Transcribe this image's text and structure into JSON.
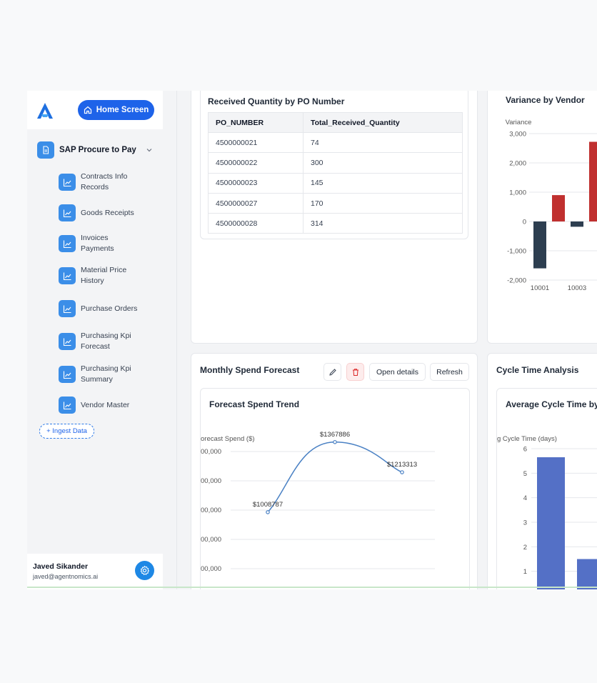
{
  "sidebar": {
    "home_button": "Home Screen",
    "group_label": "SAP Procure to Pay",
    "items": [
      {
        "label": "Contracts Info Records"
      },
      {
        "label": "Goods Receipts"
      },
      {
        "label": "Invoices Payments"
      },
      {
        "label": "Material Price History"
      },
      {
        "label": "Purchase Orders"
      },
      {
        "label": "Purchasing Kpi Forecast"
      },
      {
        "label": "Purchasing Kpi Summary"
      },
      {
        "label": "Vendor Master"
      }
    ],
    "ingest_button": "+ Ingest Data"
  },
  "user": {
    "name": "Javed Sikander",
    "email": "javed@agentnomics.ai"
  },
  "received_qty": {
    "title": "Received Quantity by PO Number",
    "columns": [
      "PO_NUMBER",
      "Total_Received_Quantity"
    ],
    "rows": [
      [
        "4500000021",
        "74"
      ],
      [
        "4500000022",
        "300"
      ],
      [
        "4500000023",
        "145"
      ],
      [
        "4500000027",
        "170"
      ],
      [
        "4500000028",
        "314"
      ]
    ]
  },
  "variance": {
    "title": "Variance by Vendor"
  },
  "monthly_spend": {
    "title": "Monthly Spend Forecast",
    "open_details": "Open details",
    "refresh": "Refresh"
  },
  "cycle_time": {
    "title": "Cycle Time Analysis"
  },
  "colors": {
    "accent": "#1e63e9",
    "icon_bg": "#3b8ee8",
    "neg_bar": "#2d3e50",
    "pos_bar": "#c0302f",
    "cycle_bar": "#5470c6",
    "line": "#4a81c4"
  },
  "chart_data": [
    {
      "type": "bar",
      "title": "Variance by Vendor",
      "ylabel": "Variance",
      "ylim": [
        -2000,
        3000
      ],
      "yticks": [
        "3,000",
        "2,000",
        "1,000",
        "0",
        "-1,000",
        "-2,000"
      ],
      "categories": [
        "10001",
        "",
        "10003",
        ""
      ],
      "values": [
        -1600,
        900,
        -180,
        2720
      ]
    },
    {
      "type": "line",
      "title": "Forecast Spend Trend",
      "ylabel": "orecast Spend ($)",
      "ylim": [
        800000,
        1400000
      ],
      "yticks": [
        "00,000",
        "00,000",
        "00,000",
        "00,000",
        "00,000"
      ],
      "values": [
        1008787,
        1367886,
        1213313
      ],
      "point_labels": [
        "$1008787",
        "$1367886",
        "$1213313"
      ]
    },
    {
      "type": "bar",
      "title": "Average Cycle Time by",
      "ylabel": "g Cycle Time (days)",
      "ylim": [
        0,
        6
      ],
      "yticks": [
        "6",
        "5",
        "4",
        "3",
        "2",
        "1"
      ],
      "values": [
        5.65,
        1.5
      ]
    }
  ]
}
